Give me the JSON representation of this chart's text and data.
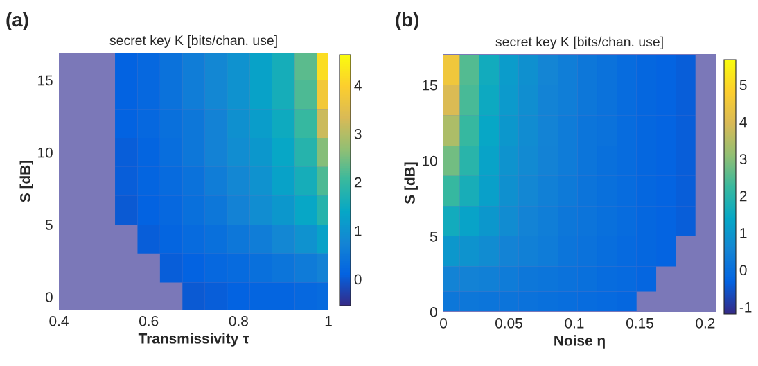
{
  "chart_data": [
    {
      "type": "heatmap",
      "title": "secret key K [bits/chan. use]",
      "xlabel": "Transmissivity τ",
      "ylabel": "S [dB]",
      "annotations": [
        "(a)"
      ],
      "x": [
        0.4,
        0.45,
        0.5,
        0.55,
        0.6,
        0.65,
        0.7,
        0.75,
        0.8,
        0.85,
        0.9,
        0.95,
        1.0
      ],
      "y": [
        16,
        14,
        12,
        10,
        8,
        6,
        4,
        2,
        0
      ],
      "cells": [
        [
          null,
          null,
          null,
          0.1,
          0.2,
          0.4,
          0.6,
          0.8,
          1.0,
          1.3,
          1.6,
          2.3,
          4.2
        ],
        [
          null,
          null,
          null,
          0.1,
          0.2,
          0.4,
          0.6,
          0.8,
          1.0,
          1.3,
          1.6,
          2.2,
          3.8
        ],
        [
          null,
          null,
          null,
          0.1,
          0.2,
          0.35,
          0.5,
          0.7,
          0.95,
          1.2,
          1.5,
          2.0,
          3.2
        ],
        [
          null,
          null,
          null,
          0.05,
          0.15,
          0.3,
          0.5,
          0.7,
          0.9,
          1.1,
          1.4,
          1.8,
          2.6
        ],
        [
          null,
          null,
          null,
          0.05,
          0.15,
          0.25,
          0.4,
          0.6,
          0.8,
          1.0,
          1.3,
          1.6,
          2.2
        ],
        [
          null,
          null,
          null,
          0.0,
          0.1,
          0.2,
          0.35,
          0.5,
          0.7,
          0.9,
          1.1,
          1.4,
          1.8
        ],
        [
          null,
          null,
          null,
          null,
          0.05,
          0.15,
          0.25,
          0.35,
          0.5,
          0.6,
          0.8,
          1.0,
          1.3
        ],
        [
          null,
          null,
          null,
          null,
          null,
          0.05,
          0.1,
          0.2,
          0.25,
          0.35,
          0.45,
          0.55,
          0.7
        ],
        [
          null,
          null,
          null,
          null,
          null,
          null,
          0.0,
          0.05,
          0.1,
          0.15,
          0.15,
          0.2,
          0.25
        ]
      ],
      "clim": [
        -0.55,
        4.63
      ],
      "cticks": [
        0,
        1,
        2,
        3,
        4
      ],
      "xlim": [
        0.4,
        1.0
      ],
      "ylim": [
        -0.9,
        16.9
      ],
      "xticks": [
        0.4,
        0.6,
        0.8,
        1
      ],
      "yticks": [
        0,
        5,
        10,
        15
      ]
    },
    {
      "type": "heatmap",
      "title": "secret key K [bits/chan. use]",
      "xlabel": "Noise η",
      "ylabel": "S [dB]",
      "annotations": [
        "(b)"
      ],
      "x": [
        0.005,
        0.02,
        0.035,
        0.05,
        0.065,
        0.08,
        0.095,
        0.11,
        0.125,
        0.14,
        0.155,
        0.17,
        0.185,
        0.2
      ],
      "y": [
        16,
        14,
        12,
        10,
        8,
        6,
        4,
        2,
        0.7
      ],
      "cells": [
        [
          4.5,
          2.5,
          1.6,
          1.1,
          0.8,
          0.55,
          0.35,
          0.2,
          0.05,
          -0.1,
          -0.2,
          -0.3,
          -0.4,
          null
        ],
        [
          4.0,
          2.4,
          1.5,
          1.05,
          0.75,
          0.5,
          0.35,
          0.2,
          0.05,
          -0.1,
          -0.2,
          -0.3,
          -0.4,
          null
        ],
        [
          3.4,
          2.2,
          1.4,
          1.0,
          0.7,
          0.5,
          0.3,
          0.15,
          0.05,
          -0.1,
          -0.2,
          -0.3,
          -0.4,
          null
        ],
        [
          2.8,
          2.0,
          1.3,
          0.9,
          0.65,
          0.45,
          0.3,
          0.15,
          0.0,
          -0.1,
          -0.2,
          -0.3,
          -0.4,
          null
        ],
        [
          2.2,
          1.7,
          1.2,
          0.8,
          0.6,
          0.4,
          0.25,
          0.1,
          0.0,
          -0.1,
          -0.2,
          -0.3,
          -0.4,
          null
        ],
        [
          1.6,
          1.3,
          1.0,
          0.7,
          0.5,
          0.35,
          0.2,
          0.1,
          0.0,
          -0.1,
          -0.2,
          -0.3,
          -0.4,
          null
        ],
        [
          1.0,
          0.9,
          0.7,
          0.5,
          0.4,
          0.3,
          0.15,
          0.05,
          -0.05,
          -0.15,
          -0.2,
          -0.3,
          null,
          null
        ],
        [
          0.5,
          0.45,
          0.4,
          0.3,
          0.2,
          0.15,
          0.05,
          0.0,
          -0.1,
          -0.15,
          -0.25,
          null,
          null,
          null
        ],
        [
          0.2,
          0.2,
          0.15,
          0.1,
          0.05,
          0.0,
          -0.05,
          -0.1,
          -0.15,
          -0.2,
          null,
          null,
          null,
          null
        ]
      ],
      "clim": [
        -1.19,
        5.68
      ],
      "cticks": [
        -1,
        0,
        1,
        2,
        3,
        4,
        5
      ],
      "xlim": [
        0,
        0.208
      ],
      "ylim": [
        0,
        17.05
      ],
      "xticks": [
        0,
        0.05,
        0.1,
        0.15,
        0.2
      ],
      "yticks": [
        0,
        5,
        10,
        15
      ]
    }
  ]
}
